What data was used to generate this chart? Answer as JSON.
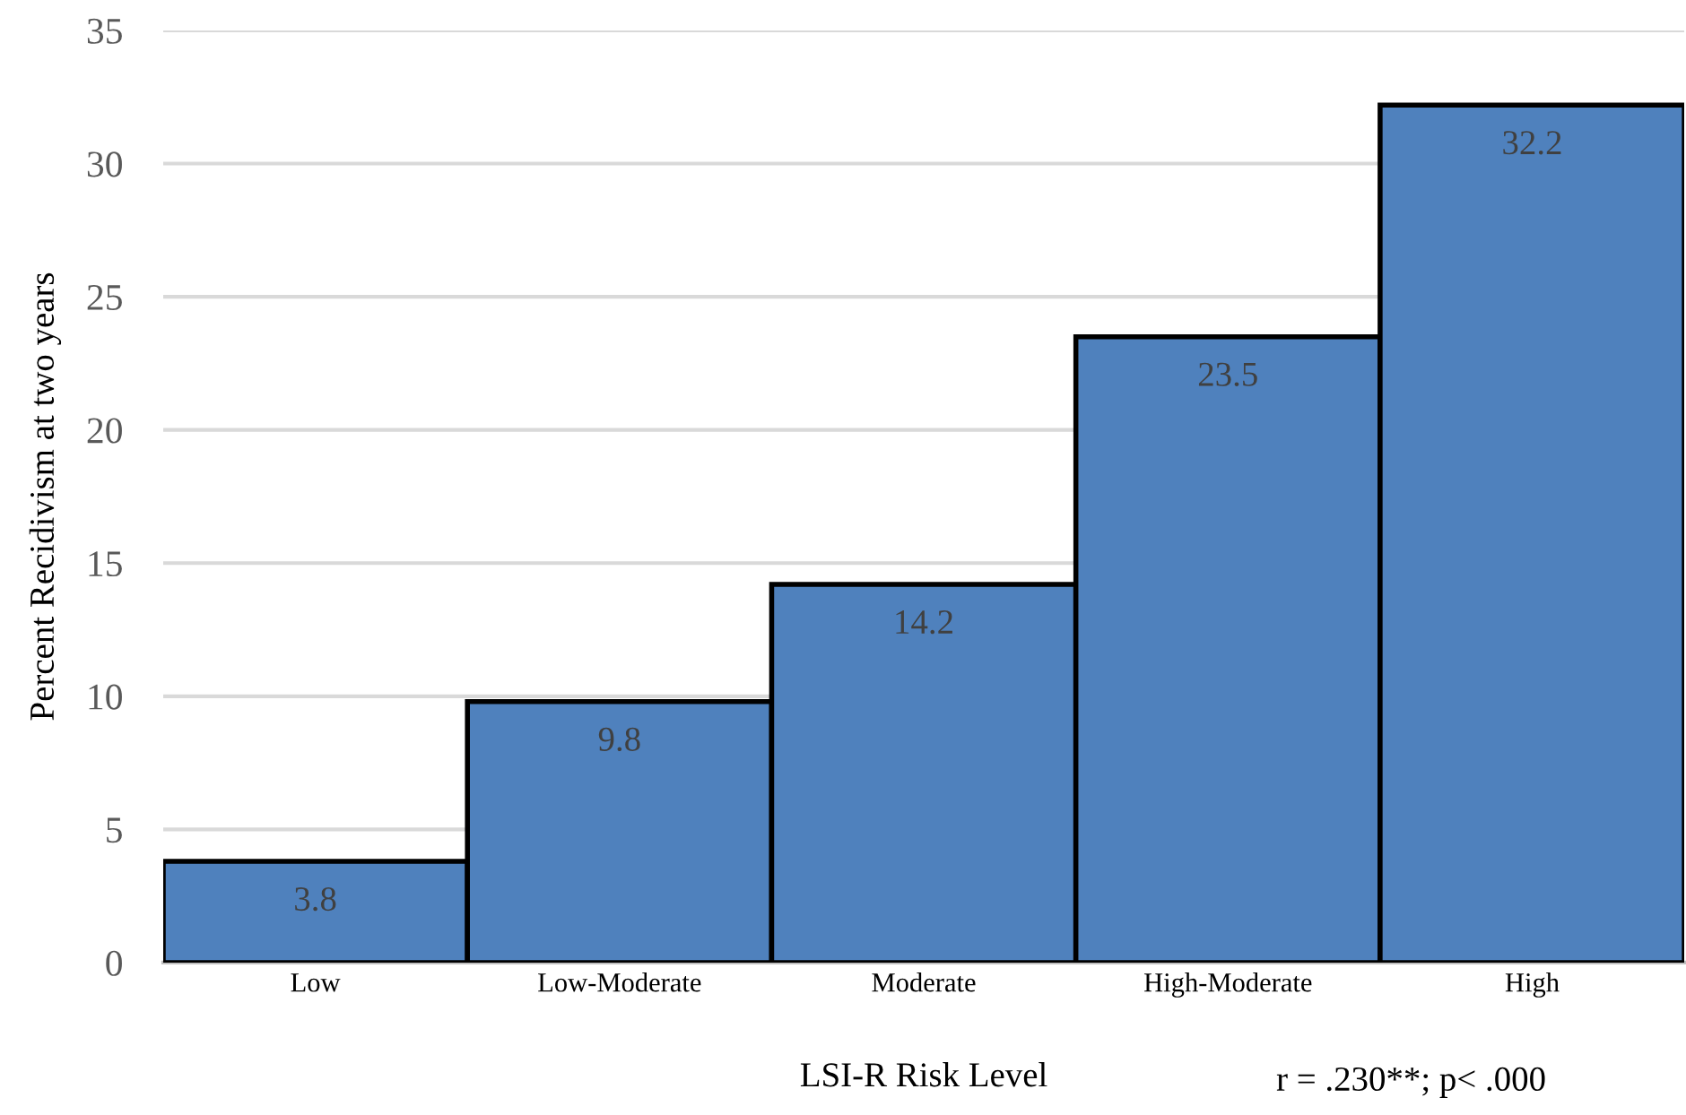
{
  "chart_data": {
    "type": "bar",
    "ylabel": "Percent Recidivism at two years",
    "xlabel": "LSI-R Risk Level",
    "annotations": [
      "r = .230**; p< .000"
    ],
    "categories": [
      "Low",
      "Low-Moderate",
      "Moderate",
      "High-Moderate",
      "High"
    ],
    "values": [
      3.8,
      9.8,
      14.2,
      23.5,
      32.2
    ],
    "color": "#4f81bd",
    "ylim": [
      0,
      35
    ],
    "yticks": [
      0,
      5,
      10,
      15,
      20,
      25,
      30,
      35
    ],
    "grid": "y",
    "data_labels": true,
    "legend": false
  }
}
